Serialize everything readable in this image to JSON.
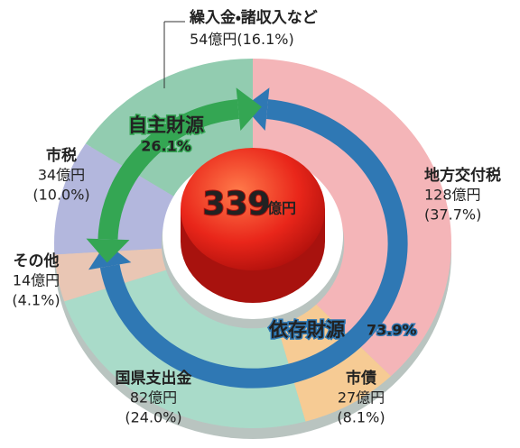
{
  "chart_data": {
    "type": "donut",
    "total": 339,
    "total_unit": "億円",
    "categories": [
      "地方交付税",
      "市債",
      "国県支出金",
      "その他",
      "市税",
      "繰入金・諸収入など"
    ],
    "values": [
      128,
      27,
      82,
      14,
      34,
      54
    ],
    "value_labels": [
      "128億円",
      "27億円",
      "82億円",
      "14億円",
      "34億円",
      "54億円"
    ],
    "percents": [
      37.7,
      8.1,
      24.0,
      4.1,
      10.0,
      16.1
    ],
    "percent_labels": [
      "(37.7%)",
      "(8.1%)",
      "(24.0%)",
      "(4.1%)",
      "(10.0%)",
      "(16.1%)"
    ],
    "colors": [
      "#f4b5b8",
      "#f6cb94",
      "#a9dbc9",
      "#e9c6b4",
      "#b3b7dd",
      "#92ccb0"
    ],
    "groups": [
      {
        "name": "依存財源",
        "percent": 73.9,
        "percent_label": "73.9%",
        "color": "#2f78b4"
      },
      {
        "name": "自主財源",
        "percent": 26.1,
        "percent_label": "26.1%",
        "color": "#34a653"
      }
    ]
  }
}
